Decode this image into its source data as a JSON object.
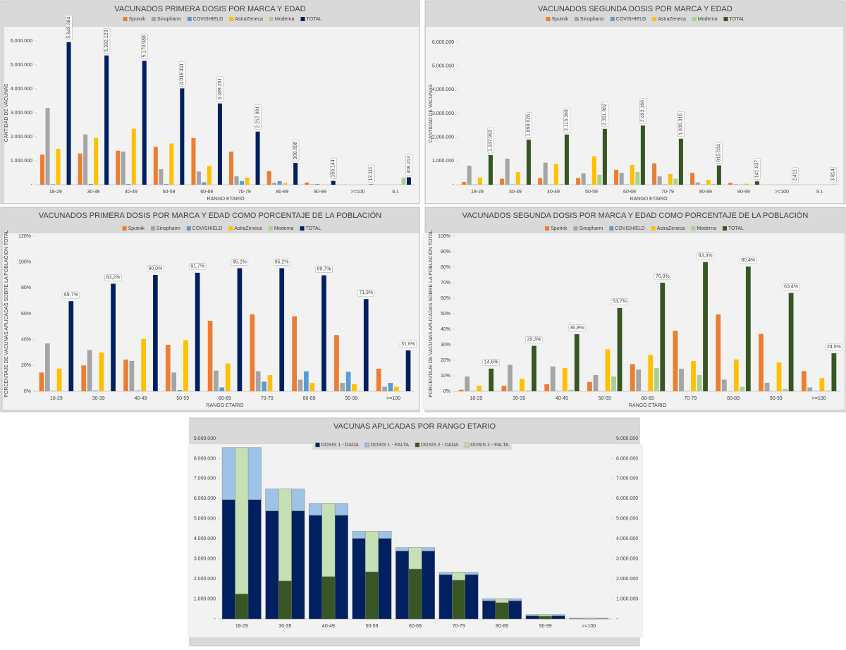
{
  "chart_data": [
    {
      "type": "bar",
      "title": "VACUNADOS PRIMERA DOSIS POR MARCA Y EDAD",
      "ylabel": "CANTIDAD DE VACUNAS",
      "xlabel": "RANGO ETARIO",
      "categories": [
        "18-29",
        "30-39",
        "40-49",
        "50-59",
        "60-69",
        "70-79",
        "80-89",
        "90-99",
        ">=100",
        "S.I."
      ],
      "ylim": [
        0,
        6000000
      ],
      "yticks": [
        {
          "value": 0,
          "label": "-"
        },
        {
          "value": 1000000,
          "label": "1.000.000"
        },
        {
          "value": 2000000,
          "label": "2.000.000"
        },
        {
          "value": 3000000,
          "label": "3.000.000"
        },
        {
          "value": 4000000,
          "label": "4.000.000"
        },
        {
          "value": 5000000,
          "label": "5.000.000"
        },
        {
          "value": 6000000,
          "label": "6.000.000"
        }
      ],
      "grid": false,
      "series": [
        {
          "name": "Sputnik",
          "color": "#ed7d31",
          "values": [
            1250000,
            1300000,
            1420000,
            1580000,
            1950000,
            1380000,
            570000,
            90000,
            5000,
            0
          ]
        },
        {
          "name": "Sinopharm",
          "color": "#a5a5a5",
          "values": [
            3200000,
            2100000,
            1380000,
            650000,
            550000,
            350000,
            80000,
            20000,
            1000,
            0
          ]
        },
        {
          "name": "COVISHIELD",
          "color": "#5b9bd5",
          "values": [
            20000,
            30000,
            30000,
            30000,
            100000,
            150000,
            150000,
            30000,
            1000,
            0
          ]
        },
        {
          "name": "AstraZeneca",
          "color": "#ffc000",
          "values": [
            1500000,
            1950000,
            2330000,
            1720000,
            780000,
            300000,
            70000,
            10000,
            1000,
            0
          ]
        },
        {
          "name": "Moderna",
          "color": "#a9d18e",
          "values": [
            0,
            0,
            0,
            0,
            0,
            0,
            0,
            0,
            0,
            290000
          ]
        },
        {
          "name": "TOTAL",
          "color": "#002060",
          "values": [
            5949384,
            5392123,
            5170088,
            4018411,
            3389261,
            2212891,
            908698,
            159144,
            13111,
            308213
          ],
          "value_labels": [
            "5.949.384",
            "5.392.123",
            "5.170.088",
            "4.018.411",
            "3.389.261",
            "2.212.891",
            "908.698",
            "159.144",
            "13.111",
            "308.213"
          ]
        }
      ]
    },
    {
      "type": "bar",
      "title": "VACUNADOS SEGUNDA DOSIS POR MARCA Y EDAD",
      "ylabel": "CANTIDAD DE VACUNAS",
      "xlabel": "RANGO ETARIO",
      "categories": [
        "18-29",
        "30-39",
        "40-49",
        "50-59",
        "60-69",
        "70-79",
        "80-89",
        "90-99",
        ">=100",
        "S.I."
      ],
      "ylim": [
        0,
        6000000
      ],
      "yticks": [
        {
          "value": 0,
          "label": "-"
        },
        {
          "value": 1000000,
          "label": "1.000.000"
        },
        {
          "value": 2000000,
          "label": "2.000.000"
        },
        {
          "value": 3000000,
          "label": "3.000.000"
        },
        {
          "value": 4000000,
          "label": "4.000.000"
        },
        {
          "value": 5000000,
          "label": "5.000.000"
        },
        {
          "value": 6000000,
          "label": "6.000.000"
        }
      ],
      "grid": false,
      "series": [
        {
          "name": "Sputnik",
          "color": "#ed7d31",
          "values": [
            120000,
            250000,
            280000,
            280000,
            630000,
            900000,
            500000,
            80000,
            2000,
            0
          ]
        },
        {
          "name": "Sinopharm",
          "color": "#a5a5a5",
          "values": [
            800000,
            1100000,
            930000,
            480000,
            500000,
            350000,
            100000,
            20000,
            0,
            0
          ]
        },
        {
          "name": "COVISHIELD",
          "color": "#5b9bd5",
          "values": [
            10000,
            10000,
            10000,
            10000,
            10000,
            10000,
            10000,
            5000,
            0,
            0
          ]
        },
        {
          "name": "AstraZeneca",
          "color": "#ffc000",
          "values": [
            300000,
            530000,
            870000,
            1200000,
            830000,
            450000,
            200000,
            40000,
            0,
            0
          ]
        },
        {
          "name": "Moderna",
          "color": "#a9d18e",
          "values": [
            0,
            0,
            30000,
            420000,
            530000,
            250000,
            30000,
            0,
            0,
            3000
          ]
        },
        {
          "name": "TOTAL",
          "color": "#375623",
          "values": [
            1247993,
            1899028,
            2113369,
            2351862,
            2493166,
            1936316,
            815034,
            141637,
            2411,
            3814
          ],
          "value_labels": [
            "1.247.993",
            "1.899.028",
            "2.113.369",
            "2.351.862",
            "2.493.166",
            "1.936.316",
            "815.034",
            "141.637",
            "2.411",
            "3.814"
          ]
        }
      ]
    },
    {
      "type": "bar",
      "title": "VACUNADOS PRIMERA DOSIS POR MARCA Y EDAD COMO PORCENTAJE DE LA POBLACIÓN",
      "ylabel": "PORCENTAJE DE VACUNAS APLICADAS SOBRE LA POBLACIÓN TOTAL",
      "xlabel": "RANGO ETARIO",
      "categories": [
        "18-29",
        "30-39",
        "40-49",
        "50-59",
        "60-69",
        "70-79",
        "80-89",
        "90-99",
        ">=100"
      ],
      "ylim": [
        0,
        120
      ],
      "yticks": [
        {
          "value": 0,
          "label": "0%"
        },
        {
          "value": 20,
          "label": "20%"
        },
        {
          "value": 40,
          "label": "40%"
        },
        {
          "value": 60,
          "label": "60%"
        },
        {
          "value": 80,
          "label": "80%"
        },
        {
          "value": 100,
          "label": "100%"
        },
        {
          "value": 120,
          "label": "120%"
        }
      ],
      "grid": false,
      "series": [
        {
          "name": "Sputnik",
          "color": "#ed7d31",
          "values": [
            14.5,
            20,
            24.5,
            36,
            54.5,
            59.5,
            58,
            43.5,
            17.5
          ]
        },
        {
          "name": "Sinopharm",
          "color": "#a5a5a5",
          "values": [
            37,
            32,
            23.5,
            14.5,
            16,
            15.5,
            9,
            6.5,
            3.5
          ]
        },
        {
          "name": "COVISHIELD",
          "color": "#5b9bd5",
          "values": [
            0.2,
            0.5,
            0.5,
            1,
            3,
            7.5,
            15.5,
            15,
            6.5
          ]
        },
        {
          "name": "AstraZeneca",
          "color": "#ffc000",
          "values": [
            17.5,
            30,
            40.5,
            39.5,
            21.5,
            12.5,
            6.5,
            5.5,
            3.5
          ]
        },
        {
          "name": "Moderna",
          "color": "#a9d18e",
          "values": [
            0,
            0,
            0,
            0,
            0,
            0,
            0,
            0,
            0
          ]
        },
        {
          "name": "TOTAL",
          "color": "#002060",
          "values": [
            69.7,
            83.2,
            90.0,
            91.7,
            95.2,
            95.2,
            89.7,
            71.3,
            31.6
          ],
          "value_labels": [
            "69,7%",
            "83,2%",
            "90,0%",
            "91,7%",
            "95,2%",
            "95,2%",
            "89,7%",
            "71,3%",
            "31,6%"
          ]
        }
      ]
    },
    {
      "type": "bar",
      "title": "VACUNADOS SEGUNDA DOSIS POR MARCA Y EDAD COMO PORCENTAJE DE LA POBLACIÓN",
      "ylabel": "PORCENTAJE DE VACUNAS APLICADAS SOBRE LA POBLACIÓN TOTAL",
      "xlabel": "RANGO ETARIO",
      "categories": [
        "18-29",
        "30-39",
        "40-49",
        "50-59",
        "60-69",
        "70-79",
        "80-89",
        "90-99",
        ">=100"
      ],
      "ylim": [
        0,
        100
      ],
      "yticks": [
        {
          "value": 0,
          "label": "0%"
        },
        {
          "value": 10,
          "label": "10%"
        },
        {
          "value": 20,
          "label": "20%"
        },
        {
          "value": 30,
          "label": "30%"
        },
        {
          "value": 40,
          "label": "40%"
        },
        {
          "value": 50,
          "label": "50%"
        },
        {
          "value": 60,
          "label": "60%"
        },
        {
          "value": 70,
          "label": "70%"
        },
        {
          "value": 80,
          "label": "80%"
        },
        {
          "value": 90,
          "label": "90%"
        },
        {
          "value": 100,
          "label": "100%"
        }
      ],
      "grid": false,
      "series": [
        {
          "name": "Sputnik",
          "color": "#ed7d31",
          "values": [
            1,
            3.5,
            4.5,
            6,
            17.5,
            39,
            49.5,
            37,
            13
          ]
        },
        {
          "name": "Sinopharm",
          "color": "#a5a5a5",
          "values": [
            9.5,
            17,
            16,
            10.5,
            14,
            14.5,
            7.5,
            5.5,
            2.5
          ]
        },
        {
          "name": "COVISHIELD",
          "color": "#5b9bd5",
          "values": [
            0.1,
            0.1,
            0.1,
            0.1,
            0.1,
            0.1,
            0.1,
            0.1,
            0.1
          ]
        },
        {
          "name": "AstraZeneca",
          "color": "#ffc000",
          "values": [
            3.5,
            8,
            15,
            27,
            23.5,
            19.5,
            20.5,
            18.5,
            8.5
          ]
        },
        {
          "name": "Moderna",
          "color": "#a9d18e",
          "values": [
            0,
            0.5,
            1,
            9.5,
            15,
            10.5,
            3,
            1.5,
            0.5
          ]
        },
        {
          "name": "TOTAL",
          "color": "#375623",
          "values": [
            14.6,
            29.3,
            36.8,
            53.7,
            70.0,
            83.3,
            80.4,
            63.4,
            24.5
          ],
          "value_labels": [
            "14,6%",
            "29,3%",
            "36,8%",
            "53,7%",
            "70,0%",
            "83,3%",
            "80,4%",
            "63,4%",
            "24,5%"
          ]
        }
      ]
    },
    {
      "type": "stacked_bar",
      "title": "VACUNAS APLICADAS POR RANGO ETARIO",
      "categories": [
        "18-29",
        "30-39",
        "40-49",
        "50-59",
        "60-69",
        "70-79",
        "80-89",
        "90-99",
        ">=100"
      ],
      "ylim": [
        0,
        9000000
      ],
      "yticks": [
        {
          "value": 0,
          "label": "-"
        },
        {
          "value": 1000000,
          "label": "1.000.000"
        },
        {
          "value": 2000000,
          "label": "2.000.000"
        },
        {
          "value": 3000000,
          "label": "3.000.000"
        },
        {
          "value": 4000000,
          "label": "4.000.000"
        },
        {
          "value": 5000000,
          "label": "5.000.000"
        },
        {
          "value": 6000000,
          "label": "6.000.000"
        },
        {
          "value": 7000000,
          "label": "7.000.000"
        },
        {
          "value": 8000000,
          "label": "8.000.000"
        },
        {
          "value": 9000000,
          "label": "9.000.000"
        }
      ],
      "y2lim": [
        0,
        9000000
      ],
      "y2ticks": [
        {
          "value": 0,
          "label": "-"
        },
        {
          "value": 1000000,
          "label": "1.000.000"
        },
        {
          "value": 2000000,
          "label": "2.000.000"
        },
        {
          "value": 3000000,
          "label": "3.000.000"
        },
        {
          "value": 4000000,
          "label": "4.000.000"
        },
        {
          "value": 5000000,
          "label": "5.000.000"
        },
        {
          "value": 6000000,
          "label": "6.000.000"
        },
        {
          "value": 7000000,
          "label": "7.000.000"
        },
        {
          "value": 8000000,
          "label": "8.000.000"
        },
        {
          "value": 9000000,
          "label": "9.000.000"
        }
      ],
      "grid": false,
      "series": [
        {
          "name": "DOSIS 1 - DADA",
          "color": "#002060",
          "values": [
            5949384,
            5392123,
            5170088,
            4018411,
            3389261,
            2212891,
            908698,
            159144,
            13111
          ]
        },
        {
          "name": "DOSIS 1 - FALTA",
          "color": "#9dc3e6",
          "values": [
            2600000,
            1090000,
            580000,
            360000,
            170000,
            110000,
            100000,
            60000,
            30000
          ]
        },
        {
          "name": "DOSIS 2 - DADA",
          "color": "#375623",
          "values": [
            1247993,
            1899028,
            2113369,
            2351862,
            2493166,
            1936316,
            815034,
            141637,
            2411
          ]
        },
        {
          "name": "DOSIS 2 - FALTA",
          "color": "#c5e0b4",
          "values": [
            7300000,
            4580000,
            3640000,
            2030000,
            1070000,
            380000,
            190000,
            80000,
            38000
          ]
        }
      ]
    }
  ]
}
